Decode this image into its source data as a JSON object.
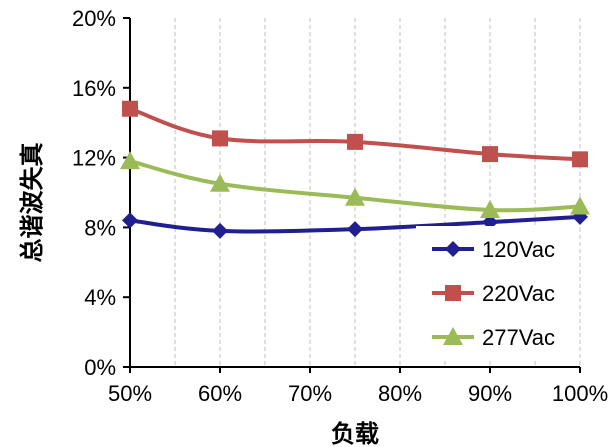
{
  "chart_data": {
    "type": "line",
    "title": "",
    "xlabel": "负载",
    "ylabel": "总谐波失真",
    "x": [
      "50%",
      "60%",
      "70%",
      "80%",
      "90%",
      "100%"
    ],
    "x_values": [
      50,
      60,
      70,
      80,
      90,
      100
    ],
    "xlim": [
      50,
      100
    ],
    "ylim": [
      0,
      20
    ],
    "y_ticks": [
      "0%",
      "4%",
      "8%",
      "12%",
      "16%",
      "20%"
    ],
    "y_tick_values": [
      0,
      4,
      8,
      12,
      16,
      20
    ],
    "grid": "vertical dashed",
    "legend_position": "bottom-right",
    "series": [
      {
        "name": "120Vac",
        "color": "#1f1f8f",
        "marker": "diamond",
        "points": [
          {
            "x": 50,
            "y": 8.4
          },
          {
            "x": 60,
            "y": 7.8
          },
          {
            "x": 75,
            "y": 7.9
          },
          {
            "x": 90,
            "y": 8.3
          },
          {
            "x": 100,
            "y": 8.6
          }
        ]
      },
      {
        "name": "220Vac",
        "color": "#c0504d",
        "marker": "square",
        "points": [
          {
            "x": 50,
            "y": 14.8
          },
          {
            "x": 60,
            "y": 13.1
          },
          {
            "x": 75,
            "y": 12.9
          },
          {
            "x": 90,
            "y": 12.2
          },
          {
            "x": 100,
            "y": 11.9
          }
        ]
      },
      {
        "name": "277Vac",
        "color": "#9bbb59",
        "marker": "triangle",
        "points": [
          {
            "x": 50,
            "y": 11.8
          },
          {
            "x": 60,
            "y": 10.5
          },
          {
            "x": 75,
            "y": 9.7
          },
          {
            "x": 90,
            "y": 9.0
          },
          {
            "x": 100,
            "y": 9.2
          }
        ]
      }
    ]
  }
}
